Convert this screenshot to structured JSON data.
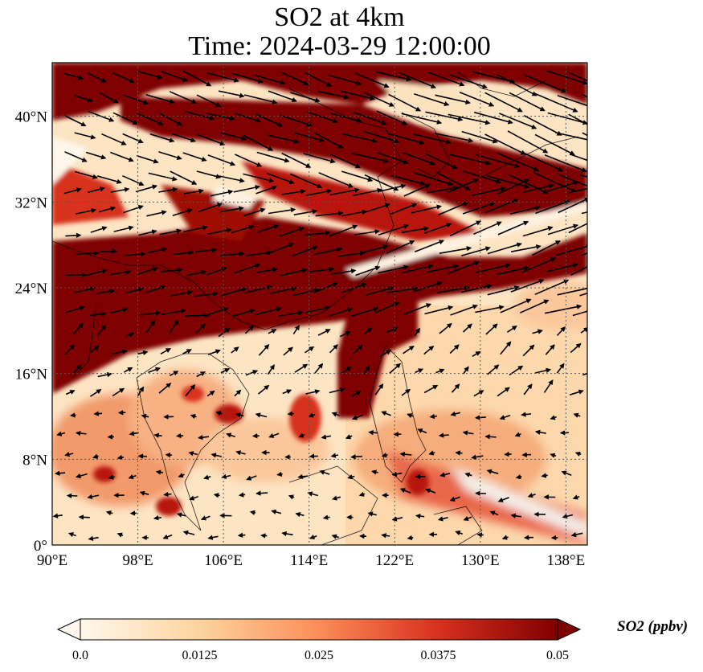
{
  "title": "SO2 at 4km",
  "subtitle": "Time: 2024-03-29 12:00:00",
  "map": {
    "lon_range": [
      90,
      140
    ],
    "lat_range": [
      0,
      45
    ],
    "lon_ticks": [
      90,
      98,
      106,
      114,
      122,
      130,
      138
    ],
    "lon_tick_labels": [
      "90°E",
      "98°E",
      "106°E",
      "114°E",
      "122°E",
      "130°E",
      "138°E"
    ],
    "lat_ticks": [
      0,
      8,
      16,
      24,
      32,
      40
    ],
    "lat_tick_labels": [
      "0°",
      "8°N",
      "16°N",
      "24°N",
      "32°N",
      "40°N"
    ],
    "gridlines": true,
    "field": "SO2 concentration at 4km with wind vectors"
  },
  "colorbar": {
    "label": "SO2 (ppbv)",
    "min": 0.0,
    "max": 0.05,
    "ticks": [
      "0.0",
      "0.0125",
      "0.025",
      "0.0375",
      "0.05"
    ],
    "extend": "both",
    "colormap_colors": [
      "#fff7ec",
      "#fdd49e",
      "#fc8d59",
      "#d7301f",
      "#7f0000"
    ]
  }
}
